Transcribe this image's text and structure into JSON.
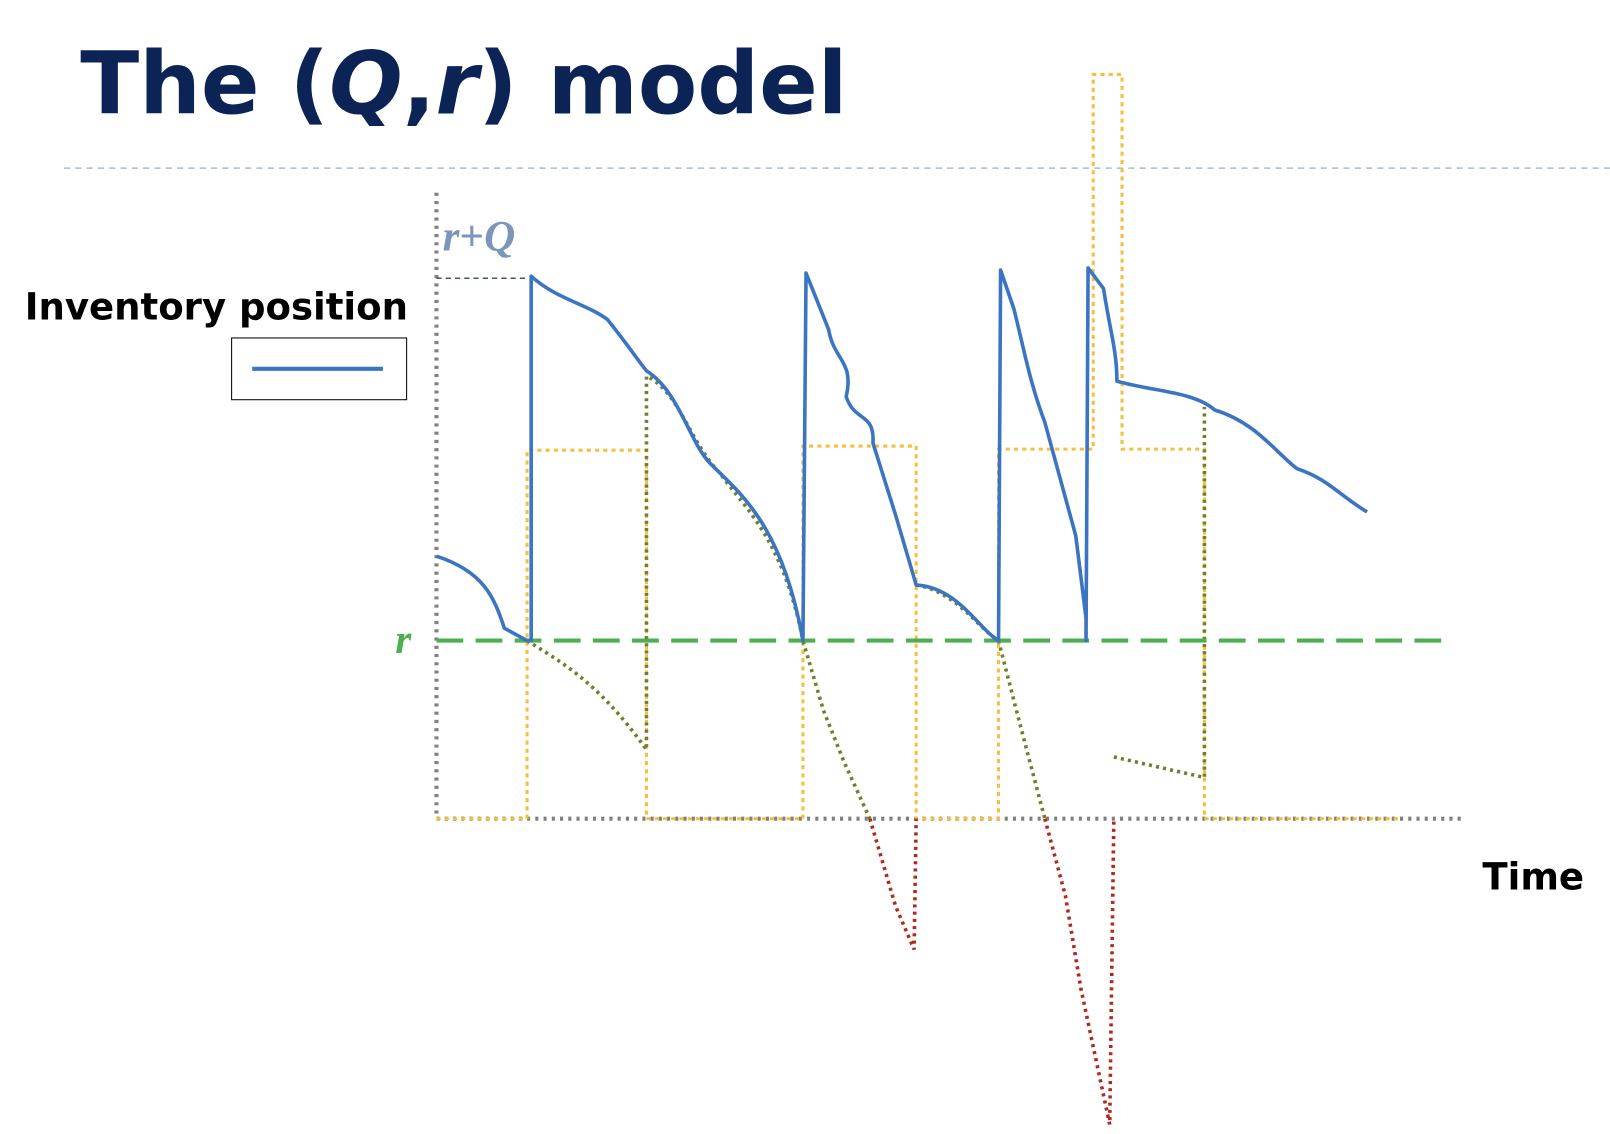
{
  "title": {
    "part1": "The (",
    "q": "Q",
    "comma": ",",
    "r": "r",
    "part2": ") model"
  },
  "legend": {
    "label": "Inventory position"
  },
  "labels": {
    "top_r": "r",
    "top_plus": "+",
    "top_q": "Q",
    "reorder": "r",
    "time": "Time"
  }
}
